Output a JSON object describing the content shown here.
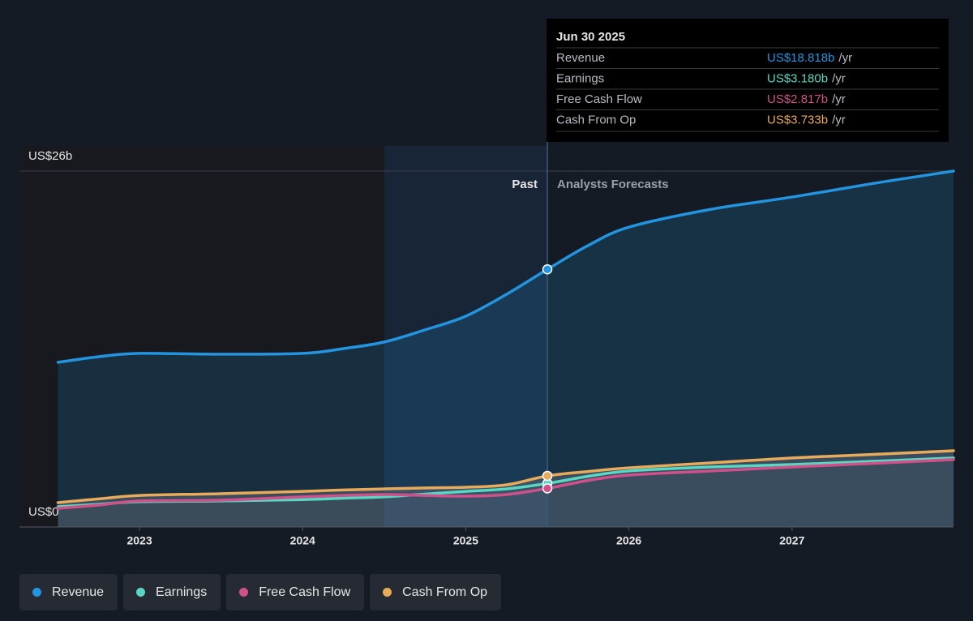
{
  "chart_data": {
    "type": "line",
    "x": [
      2022.5,
      2022.75,
      2023,
      2023.5,
      2024,
      2024.25,
      2024.5,
      2024.75,
      2025,
      2025.25,
      2025.5,
      2025.75,
      2026,
      2026.5,
      2027,
      2027.5,
      2027.99
    ],
    "series": [
      {
        "name": "Revenue",
        "color": "#2394df",
        "values": [
          12.03,
          12.44,
          12.68,
          12.62,
          12.68,
          13.03,
          13.51,
          14.4,
          15.4,
          17.0,
          18.818,
          20.56,
          21.9,
          23.2,
          24.1,
          25.1,
          26.0
        ]
      },
      {
        "name": "Earnings",
        "color": "#58d7c3",
        "values": [
          1.48,
          1.66,
          1.84,
          1.9,
          2.0,
          2.1,
          2.2,
          2.4,
          2.6,
          2.78,
          3.18,
          3.7,
          4.09,
          4.38,
          4.56,
          4.8,
          5.04
        ]
      },
      {
        "name": "Free Cash Flow",
        "color": "#d0508a",
        "values": [
          1.36,
          1.6,
          1.9,
          1.96,
          2.2,
          2.3,
          2.37,
          2.3,
          2.25,
          2.37,
          2.817,
          3.4,
          3.79,
          4.09,
          4.38,
          4.65,
          4.92
        ]
      },
      {
        "name": "Cash From Op",
        "color": "#e8aa5b",
        "values": [
          1.78,
          2.05,
          2.3,
          2.43,
          2.6,
          2.7,
          2.78,
          2.85,
          2.9,
          3.08,
          3.733,
          4.05,
          4.32,
          4.68,
          5.04,
          5.3,
          5.57
        ]
      }
    ],
    "xlim": [
      2022.264,
      2027.99
    ],
    "xticks": [
      2023,
      2024,
      2025,
      2026,
      2027
    ],
    "ylim": [
      0,
      26
    ],
    "yticks": [
      {
        "value": 0,
        "label": "US$0"
      },
      {
        "value": 26,
        "label": "US$26b"
      }
    ],
    "highlight": [
      2024.5,
      2025.5
    ],
    "forecast_start": 2025.5,
    "past_label": "Past",
    "forecast_label": "Analysts Forecasts",
    "tooltip": {
      "title": "Jun 30 2025",
      "index": 10,
      "rows": [
        {
          "label": "Revenue",
          "value_label": "US$18.818b",
          "unit": "/yr"
        },
        {
          "label": "Earnings",
          "value_label": "US$3.180b",
          "unit": "/yr"
        },
        {
          "label": "Free Cash Flow",
          "value_label": "US$2.817b",
          "unit": "/yr"
        },
        {
          "label": "Cash From Op",
          "value_label": "US$3.733b",
          "unit": "/yr"
        }
      ]
    }
  }
}
